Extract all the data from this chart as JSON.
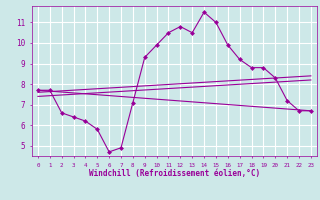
{
  "title": "",
  "xlabel": "Windchill (Refroidissement éolien,°C)",
  "ylabel": "",
  "bg_color": "#cde8e8",
  "grid_color": "#ffffff",
  "line_color": "#990099",
  "xlim": [
    -0.5,
    23.5
  ],
  "ylim": [
    4.5,
    11.8
  ],
  "yticks": [
    5,
    6,
    7,
    8,
    9,
    10,
    11
  ],
  "xticks": [
    0,
    1,
    2,
    3,
    4,
    5,
    6,
    7,
    8,
    9,
    10,
    11,
    12,
    13,
    14,
    15,
    16,
    17,
    18,
    19,
    20,
    21,
    22,
    23
  ],
  "curve1_x": [
    0,
    1,
    2,
    3,
    4,
    5,
    6,
    7,
    8,
    9,
    10,
    11,
    12,
    13,
    14,
    15,
    16,
    17,
    18,
    19,
    20,
    21,
    22,
    23
  ],
  "curve1_y": [
    7.7,
    7.7,
    6.6,
    6.4,
    6.2,
    5.8,
    4.7,
    4.9,
    7.1,
    9.3,
    9.9,
    10.5,
    10.8,
    10.5,
    11.5,
    11.0,
    9.9,
    9.2,
    8.8,
    8.8,
    8.3,
    7.2,
    6.7,
    6.7
  ],
  "curve2_x": [
    0,
    23
  ],
  "curve2_y": [
    7.7,
    6.7
  ],
  "curve3_x": [
    0,
    23
  ],
  "curve3_y": [
    7.6,
    8.4
  ],
  "curve4_x": [
    0,
    23
  ],
  "curve4_y": [
    7.4,
    8.2
  ]
}
